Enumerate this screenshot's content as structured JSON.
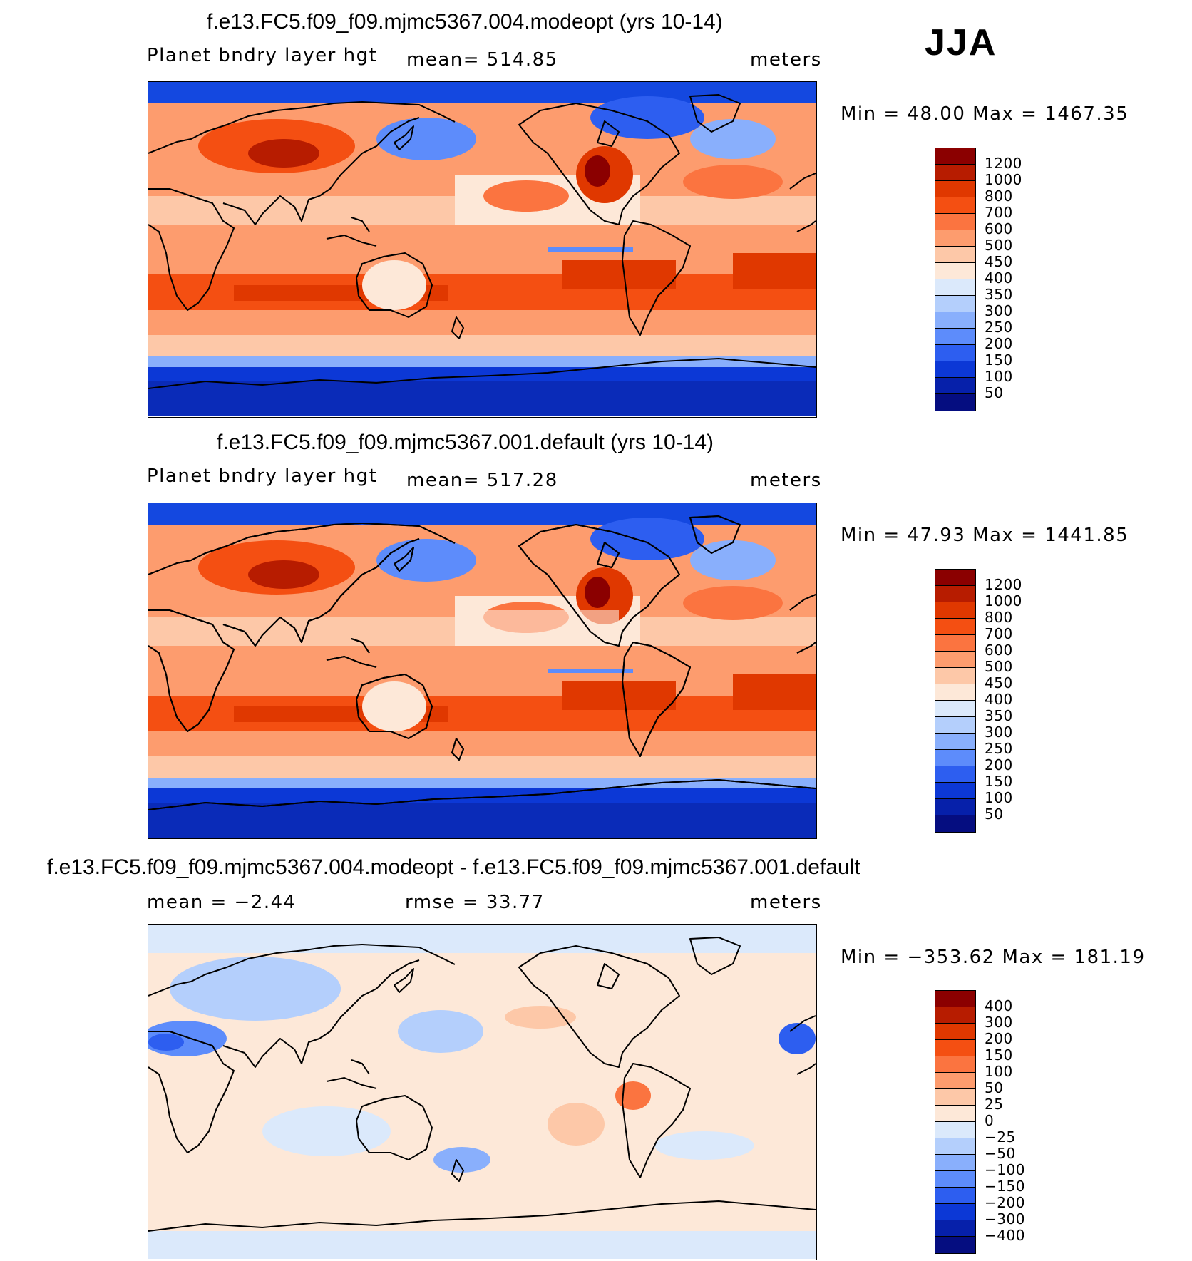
{
  "season": "JJA",
  "panels": [
    {
      "title": "f.e13.FC5.f09_f09.mjmc5367.004.modeopt (yrs 10-14)",
      "left": "Planet  bndry  layer  hgt",
      "center": "mean=  514.85",
      "right": "meters",
      "minmax": "Min  =    48.00  Max  =  1467.35",
      "legend_labels": [
        "1200",
        "1000",
        "800",
        "700",
        "600",
        "500",
        "450",
        "400",
        "350",
        "300",
        "250",
        "200",
        "150",
        "100",
        "50"
      ],
      "legend_colors": [
        "#8b0000",
        "#b71c00",
        "#e03800",
        "#f44f12",
        "#fb7440",
        "#fd9c6e",
        "#fdc8a8",
        "#fde8d8",
        "#dbe9fb",
        "#b4cffc",
        "#89affc",
        "#5d8cfb",
        "#2d5ef0",
        "#0c38d6",
        "#0620aa",
        "#050d80"
      ],
      "map_id": "clim"
    },
    {
      "title": "f.e13.FC5.f09_f09.mjmc5367.001.default (yrs 10-14)",
      "left": "Planet  bndry  layer  hgt",
      "center": "mean=  517.28",
      "right": "meters",
      "minmax": "Min  =    47.93  Max  =  1441.85",
      "legend_labels": [
        "1200",
        "1000",
        "800",
        "700",
        "600",
        "500",
        "450",
        "400",
        "350",
        "300",
        "250",
        "200",
        "150",
        "100",
        "50"
      ],
      "legend_colors": [
        "#8b0000",
        "#b71c00",
        "#e03800",
        "#f44f12",
        "#fb7440",
        "#fd9c6e",
        "#fdc8a8",
        "#fde8d8",
        "#dbe9fb",
        "#b4cffc",
        "#89affc",
        "#5d8cfb",
        "#2d5ef0",
        "#0c38d6",
        "#0620aa",
        "#050d80"
      ],
      "map_id": "clim"
    },
    {
      "title": "f.e13.FC5.f09_f09.mjmc5367.004.modeopt - f.e13.FC5.f09_f09.mjmc5367.001.default",
      "left": "mean  =    −2.44",
      "center": "rmse  =    33.77",
      "right": "meters",
      "minmax": "Min  =  −353.62  Max  =  181.19",
      "legend_labels": [
        "400",
        "300",
        "200",
        "150",
        "100",
        "50",
        "25",
        "0",
        "−25",
        "−50",
        "−100",
        "−150",
        "−200",
        "−300",
        "−400"
      ],
      "legend_colors": [
        "#8b0000",
        "#b71c00",
        "#e03800",
        "#f44f12",
        "#fb7440",
        "#fd9c6e",
        "#fdc8a8",
        "#fde8d8",
        "#dbe9fb",
        "#b4cffc",
        "#89affc",
        "#5d8cfb",
        "#2d5ef0",
        "#0c38d6",
        "#0620aa",
        "#050d80"
      ],
      "map_id": "diff"
    }
  ]
}
